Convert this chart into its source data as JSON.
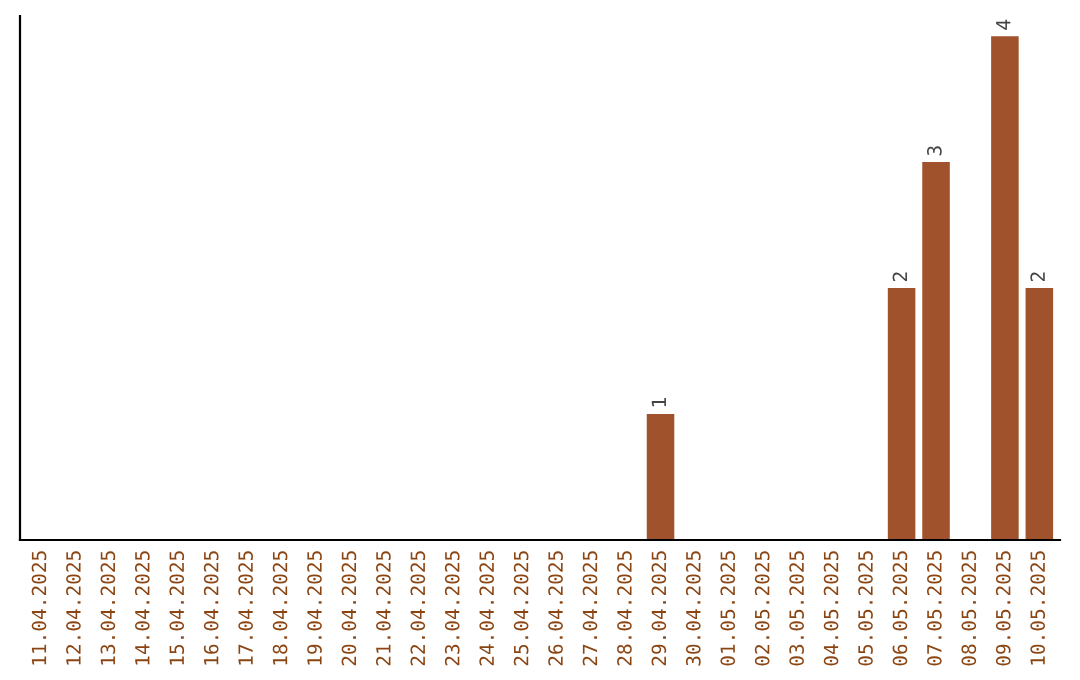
{
  "chart_data": {
    "type": "bar",
    "categories": [
      "11.04.2025",
      "12.04.2025",
      "13.04.2025",
      "14.04.2025",
      "15.04.2025",
      "16.04.2025",
      "17.04.2025",
      "18.04.2025",
      "19.04.2025",
      "20.04.2025",
      "21.04.2025",
      "22.04.2025",
      "23.04.2025",
      "24.04.2025",
      "25.04.2025",
      "26.04.2025",
      "27.04.2025",
      "28.04.2025",
      "29.04.2025",
      "30.04.2025",
      "01.05.2025",
      "02.05.2025",
      "03.05.2025",
      "04.05.2025",
      "05.05.2025",
      "06.05.2025",
      "07.05.2025",
      "08.05.2025",
      "09.05.2025",
      "10.05.2025"
    ],
    "values": [
      null,
      null,
      null,
      null,
      null,
      null,
      null,
      null,
      null,
      null,
      null,
      null,
      null,
      null,
      null,
      null,
      null,
      null,
      1,
      null,
      null,
      null,
      null,
      null,
      null,
      2,
      3,
      null,
      4,
      2
    ],
    "value_labels": [
      null,
      null,
      null,
      null,
      null,
      null,
      null,
      null,
      null,
      null,
      null,
      null,
      null,
      null,
      null,
      null,
      null,
      null,
      "1",
      null,
      null,
      null,
      null,
      null,
      null,
      "2",
      "3",
      null,
      "4",
      "2"
    ],
    "color": "#a0522d",
    "grid": false,
    "legend": false
  }
}
